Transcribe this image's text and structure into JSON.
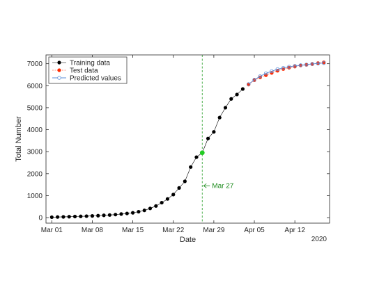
{
  "chart_data": {
    "type": "line",
    "xlabel": "Date",
    "ylabel": "Total Number",
    "year_label": "2020",
    "x_ticks": [
      "Mar 01",
      "Mar 08",
      "Mar 15",
      "Mar 22",
      "Mar 29",
      "Apr 05",
      "Apr 12"
    ],
    "y_ticks": [
      0,
      1000,
      2000,
      3000,
      4000,
      5000,
      6000,
      7000
    ],
    "xlim": [
      "2020-02-29",
      "2020-04-18"
    ],
    "ylim": [
      -250,
      7400
    ],
    "legend_position": "top-left",
    "annotation": {
      "label": "Mar 27",
      "date": "2020-03-27",
      "y": 1450,
      "color": "#1a8a1a"
    },
    "series": [
      {
        "name": "Training data",
        "color": "#000000",
        "dates": [
          "2020-03-01",
          "2020-03-02",
          "2020-03-03",
          "2020-03-04",
          "2020-03-05",
          "2020-03-06",
          "2020-03-07",
          "2020-03-08",
          "2020-03-09",
          "2020-03-10",
          "2020-03-11",
          "2020-03-12",
          "2020-03-13",
          "2020-03-14",
          "2020-03-15",
          "2020-03-16",
          "2020-03-17",
          "2020-03-18",
          "2020-03-19",
          "2020-03-20",
          "2020-03-21",
          "2020-03-22",
          "2020-03-23",
          "2020-03-24",
          "2020-03-25",
          "2020-03-26",
          "2020-03-27",
          "2020-03-28",
          "2020-03-29",
          "2020-03-30",
          "2020-03-31",
          "2020-04-01",
          "2020-04-02",
          "2020-04-03"
        ],
        "values": [
          20,
          28,
          35,
          42,
          50,
          58,
          68,
          78,
          90,
          105,
          120,
          140,
          165,
          190,
          220,
          270,
          330,
          420,
          530,
          680,
          850,
          1050,
          1350,
          1650,
          2300,
          2750,
          2950,
          3600,
          3900,
          4550,
          5000,
          5400,
          5600,
          5850
        ]
      },
      {
        "name": "Test data",
        "color": "#ff2a00",
        "dates": [
          "2020-04-04",
          "2020-04-05",
          "2020-04-06",
          "2020-04-07",
          "2020-04-08",
          "2020-04-09",
          "2020-04-10",
          "2020-04-11",
          "2020-04-12",
          "2020-04-13",
          "2020-04-14",
          "2020-04-15",
          "2020-04-16",
          "2020-04-17"
        ],
        "values": [
          6050,
          6250,
          6380,
          6480,
          6580,
          6680,
          6760,
          6820,
          6870,
          6920,
          6950,
          6980,
          7030,
          7060
        ]
      },
      {
        "name": "Predicted values",
        "color": "#5b8fd9",
        "dates": [
          "2020-04-04",
          "2020-04-05",
          "2020-04-06",
          "2020-04-07",
          "2020-04-08",
          "2020-04-09",
          "2020-04-10",
          "2020-04-11",
          "2020-04-12",
          "2020-04-13",
          "2020-04-14",
          "2020-04-15",
          "2020-04-16",
          "2020-04-17"
        ],
        "values": [
          6070,
          6270,
          6430,
          6560,
          6660,
          6750,
          6810,
          6860,
          6900,
          6930,
          6960,
          6990,
          7010,
          7030
        ]
      }
    ],
    "highlight_point": {
      "date": "2020-03-27",
      "value": 2950,
      "color": "#22cc22"
    }
  }
}
